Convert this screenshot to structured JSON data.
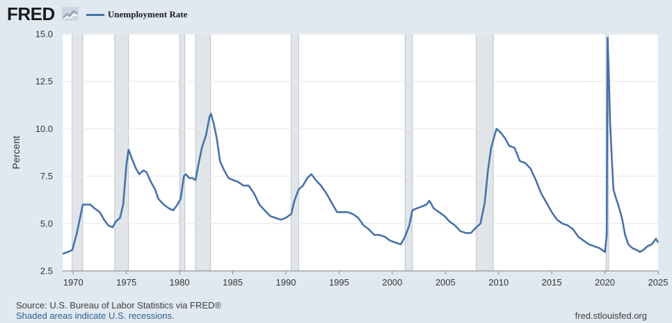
{
  "header": {
    "logo_text": "FRED",
    "logo_icon": "fred-chart-logo-icon",
    "legend_label": "Unemployment Rate",
    "series_color": "#4572a7"
  },
  "footer": {
    "source": "Source: U.S. Bureau of Labor Statistics via FRED®",
    "recession_note": "Shaded areas indicate U.S. recessions.",
    "site": "fred.stlouisfed.org"
  },
  "chart_data": {
    "type": "line",
    "title": "",
    "xlabel": "",
    "ylabel": "Percent",
    "xlim": [
      1969,
      2025
    ],
    "ylim": [
      2.5,
      15.0
    ],
    "grid": true,
    "x_ticks": [
      "1970",
      "1975",
      "1980",
      "1985",
      "1990",
      "1995",
      "2000",
      "2005",
      "2010",
      "2015",
      "2020",
      "2025"
    ],
    "y_ticks": [
      "2.5",
      "5.0",
      "7.5",
      "10.0",
      "12.5",
      "15.0"
    ],
    "recessions": [
      [
        1969.9,
        1970.9
      ],
      [
        1973.9,
        1975.2
      ],
      [
        1980.0,
        1980.5
      ],
      [
        1981.5,
        1982.9
      ],
      [
        1990.5,
        1991.2
      ],
      [
        2001.2,
        2001.9
      ],
      [
        2007.9,
        2009.5
      ],
      [
        2020.1,
        2020.35
      ]
    ],
    "recession_color": "#e1e5ea",
    "series": [
      {
        "name": "Unemployment Rate",
        "x": [
          1969.0,
          1969.5,
          1969.9,
          1970.3,
          1970.6,
          1970.9,
          1971.2,
          1971.6,
          1972.0,
          1972.5,
          1972.9,
          1973.3,
          1973.7,
          1974.0,
          1974.4,
          1974.7,
          1975.0,
          1975.2,
          1975.4,
          1975.6,
          1975.9,
          1976.2,
          1976.6,
          1976.9,
          1977.3,
          1977.7,
          1978.0,
          1978.5,
          1979.0,
          1979.4,
          1979.8,
          1980.1,
          1980.4,
          1980.6,
          1980.9,
          1981.2,
          1981.5,
          1981.8,
          1982.1,
          1982.5,
          1982.8,
          1982.95,
          1983.2,
          1983.5,
          1983.8,
          1984.2,
          1984.6,
          1985.0,
          1985.5,
          1986.0,
          1986.5,
          1987.0,
          1987.5,
          1988.0,
          1988.5,
          1989.0,
          1989.5,
          1990.0,
          1990.5,
          1990.8,
          1991.2,
          1991.6,
          1992.0,
          1992.4,
          1992.8,
          1993.3,
          1993.8,
          1994.3,
          1994.8,
          1995.3,
          1995.8,
          1996.3,
          1996.8,
          1997.3,
          1997.8,
          1998.3,
          1998.8,
          1999.3,
          1999.8,
          2000.3,
          2000.8,
          2001.2,
          2001.6,
          2001.9,
          2002.3,
          2002.8,
          2003.2,
          2003.5,
          2003.9,
          2004.4,
          2004.9,
          2005.4,
          2005.9,
          2006.4,
          2006.9,
          2007.4,
          2007.9,
          2008.3,
          2008.7,
          2009.0,
          2009.3,
          2009.6,
          2009.8,
          2010.2,
          2010.6,
          2011.0,
          2011.5,
          2012.0,
          2012.5,
          2013.0,
          2013.5,
          2014.0,
          2014.5,
          2015.0,
          2015.5,
          2016.0,
          2016.5,
          2017.0,
          2017.5,
          2018.0,
          2018.5,
          2019.0,
          2019.5,
          2020.0,
          2020.17,
          2020.25,
          2020.35,
          2020.5,
          2020.65,
          2020.8,
          2021.0,
          2021.3,
          2021.6,
          2021.9,
          2022.2,
          2022.6,
          2023.0,
          2023.3,
          2023.6,
          2024.0,
          2024.4,
          2024.8,
          2025.0
        ],
        "y": [
          3.4,
          3.5,
          3.6,
          4.4,
          5.2,
          6.0,
          6.0,
          6.0,
          5.8,
          5.6,
          5.2,
          4.9,
          4.8,
          5.1,
          5.3,
          6.0,
          8.1,
          8.9,
          8.6,
          8.3,
          7.9,
          7.6,
          7.8,
          7.7,
          7.2,
          6.8,
          6.3,
          6.0,
          5.8,
          5.7,
          6.0,
          6.3,
          7.5,
          7.6,
          7.4,
          7.4,
          7.3,
          8.2,
          9.0,
          9.7,
          10.6,
          10.8,
          10.3,
          9.5,
          8.3,
          7.8,
          7.4,
          7.3,
          7.2,
          7.0,
          7.0,
          6.6,
          6.0,
          5.7,
          5.4,
          5.3,
          5.2,
          5.3,
          5.5,
          6.2,
          6.8,
          7.0,
          7.4,
          7.6,
          7.3,
          7.0,
          6.6,
          6.1,
          5.6,
          5.6,
          5.6,
          5.5,
          5.3,
          4.9,
          4.7,
          4.4,
          4.4,
          4.3,
          4.1,
          4.0,
          3.9,
          4.3,
          4.9,
          5.7,
          5.8,
          5.9,
          6.0,
          6.2,
          5.8,
          5.6,
          5.4,
          5.1,
          4.9,
          4.6,
          4.5,
          4.5,
          4.8,
          5.0,
          6.1,
          7.8,
          9.0,
          9.6,
          10.0,
          9.8,
          9.5,
          9.1,
          9.0,
          8.3,
          8.2,
          7.9,
          7.3,
          6.6,
          6.1,
          5.6,
          5.2,
          5.0,
          4.9,
          4.7,
          4.3,
          4.1,
          3.9,
          3.8,
          3.7,
          3.5,
          4.4,
          14.8,
          13.2,
          10.2,
          8.4,
          6.8,
          6.4,
          5.9,
          5.3,
          4.4,
          3.9,
          3.7,
          3.6,
          3.5,
          3.6,
          3.8,
          3.9,
          4.2,
          4.0
        ]
      }
    ]
  }
}
